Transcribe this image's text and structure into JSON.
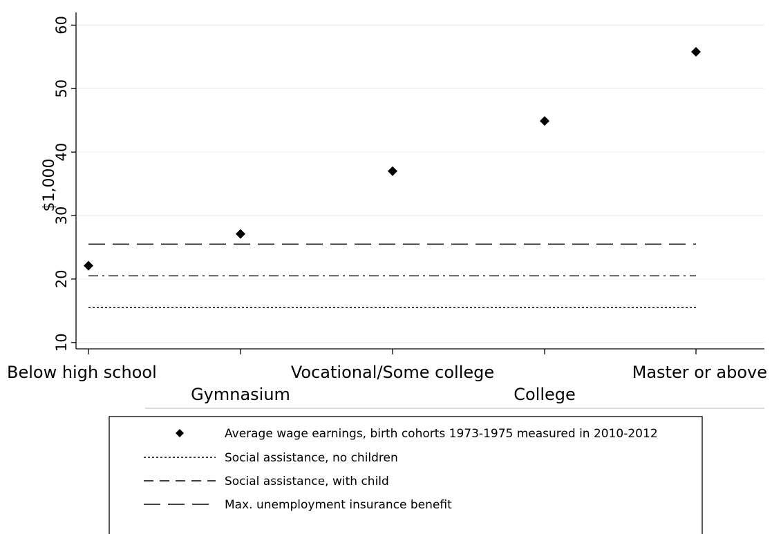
{
  "chart_data": {
    "type": "scatter",
    "title": "",
    "xlabel": "",
    "ylabel": "$1,000",
    "ylim": [
      9,
      62
    ],
    "yticks": [
      10,
      20,
      30,
      40,
      50,
      60
    ],
    "grid": "horizontal",
    "categories": [
      "Below high school",
      "Gymnasium",
      "Vocational/Some college",
      "College",
      "Master or above"
    ],
    "series": [
      {
        "name": "Average wage earnings, birth cohorts 1973-1975 measured in 2010-2012",
        "marker": "diamond",
        "color": "#000000",
        "values": [
          22.1,
          27.1,
          37.0,
          44.9,
          55.8
        ]
      }
    ],
    "reference_lines": [
      {
        "name": "Social assistance, no children",
        "y": 15.5,
        "style": "dotted"
      },
      {
        "name": "Social assistance, with child",
        "y": 20.5,
        "style": "dash-dot"
      },
      {
        "name": "Max. unemployment insurance benefit",
        "y": 25.5,
        "style": "long-dash"
      }
    ],
    "legend": {
      "placement": "bottom",
      "entries": [
        {
          "key": "marker",
          "label": "Average wage earnings, birth cohorts 1973-1975 measured in 2010-2012"
        },
        {
          "key": "dotted",
          "label": "Social assistance, no children"
        },
        {
          "key": "short-dash",
          "label": "Social assistance, with child"
        },
        {
          "key": "long-dash",
          "label": "Max. unemployment insurance benefit"
        }
      ]
    }
  }
}
